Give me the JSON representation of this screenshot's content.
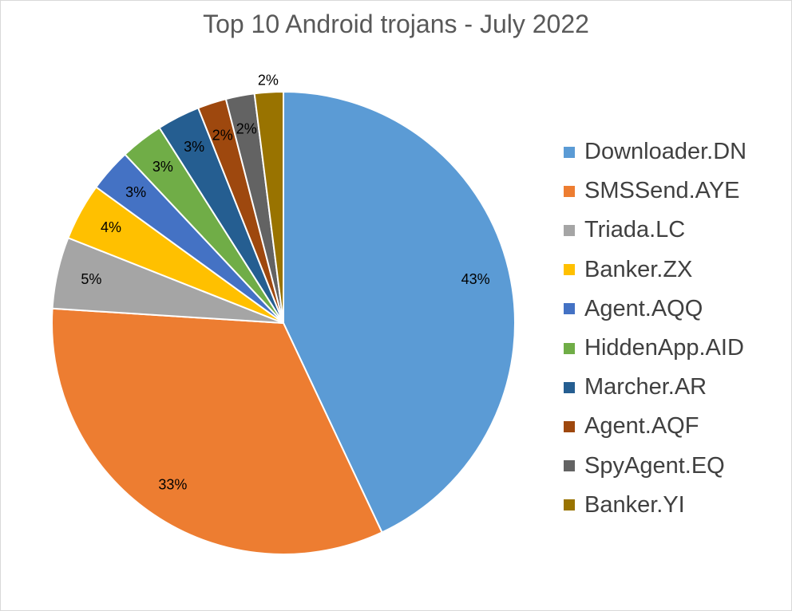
{
  "chart_data": {
    "type": "pie",
    "title": "Top 10 Android trojans - July 2022",
    "legend_position": "right",
    "slices": [
      {
        "label": "Downloader.DN",
        "value": 43,
        "data_label": "43%",
        "color": "#5b9bd5"
      },
      {
        "label": "SMSSend.AYE",
        "value": 33,
        "data_label": "33%",
        "color": "#ed7d31"
      },
      {
        "label": "Triada.LC",
        "value": 5,
        "data_label": "5%",
        "color": "#a5a5a5"
      },
      {
        "label": "Banker.ZX",
        "value": 4,
        "data_label": "4%",
        "color": "#ffc000"
      },
      {
        "label": "Agent.AQQ",
        "value": 3,
        "data_label": "3%",
        "color": "#4472c4"
      },
      {
        "label": "HiddenApp.AID",
        "value": 3,
        "data_label": "3%",
        "color": "#70ad47"
      },
      {
        "label": "Marcher.AR",
        "value": 3,
        "data_label": "3%",
        "color": "#255e91"
      },
      {
        "label": "Agent.AQF",
        "value": 2,
        "data_label": "2%",
        "color": "#9e480e"
      },
      {
        "label": "SpyAgent.EQ",
        "value": 2,
        "data_label": "2%",
        "color": "#636363"
      },
      {
        "label": "Banker.YI",
        "value": 2,
        "data_label": "2%",
        "color": "#997300"
      }
    ]
  }
}
